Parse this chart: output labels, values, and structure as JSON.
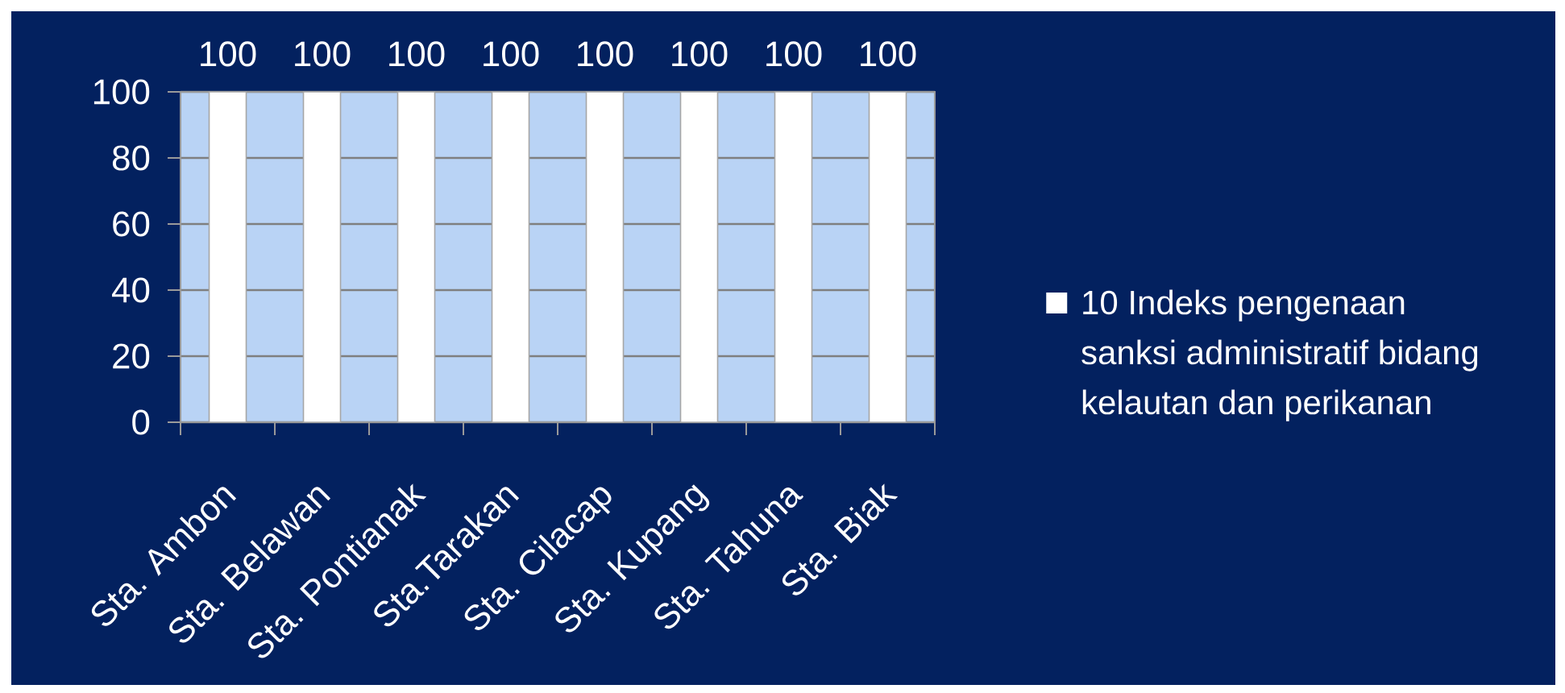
{
  "chart_data": {
    "type": "bar",
    "categories": [
      "Sta. Ambon",
      "Sta. Belawan",
      "Sta. Pontianak",
      "Sta.Tarakan",
      "Sta. Cilacap",
      "Sta. Kupang",
      "Sta. Tahuna",
      "Sta. Biak"
    ],
    "series": [
      {
        "name": "10 Indeks pengenaan sanksi administratif bidang kelautan dan perikanan",
        "color": "#ffffff",
        "values": [
          100,
          100,
          100,
          100,
          100,
          100,
          100,
          100
        ]
      }
    ],
    "ylim": [
      0,
      100
    ],
    "yticks": [
      0,
      20,
      40,
      60,
      80,
      100
    ],
    "grid": "y",
    "legend": "right",
    "data_labels": true
  }
}
